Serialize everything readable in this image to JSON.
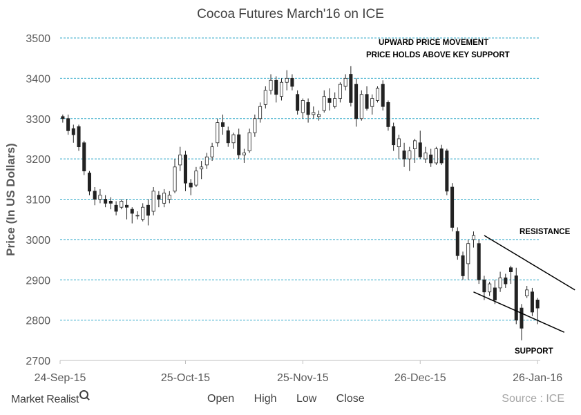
{
  "chart_data": {
    "type": "candlestick",
    "title": "Cocoa Futures  March'16  on ICE",
    "ylabel": "Price (In US Dollars)",
    "ylim": [
      2700,
      3500
    ],
    "yticks": [
      2700,
      2800,
      2900,
      3000,
      3100,
      3200,
      3300,
      3400,
      3500
    ],
    "xtick_labels": [
      "24-Sep-15",
      "25-Oct-15",
      "25-Nov-15",
      "26-Dec-15",
      "26-Jan-16"
    ],
    "grid": "horizontal-dashed",
    "legend_labels": [
      "Open",
      "High",
      "Low",
      "Close"
    ],
    "annotations": [
      "UPWARD PRICE  MOVEMENT",
      "PRICE HOLDS ABOVE KEY SUPPORT",
      "RESISTANCE",
      "SUPPORT"
    ],
    "candles": [
      [
        3305,
        3310,
        3290,
        3300
      ],
      [
        3300,
        3310,
        3260,
        3270
      ],
      [
        3275,
        3285,
        3240,
        3260
      ],
      [
        3280,
        3285,
        3220,
        3230
      ],
      [
        3240,
        3245,
        3160,
        3170
      ],
      [
        3165,
        3170,
        3110,
        3120
      ],
      [
        3120,
        3130,
        3085,
        3100
      ],
      [
        3100,
        3125,
        3090,
        3110
      ],
      [
        3100,
        3110,
        3080,
        3090
      ],
      [
        3095,
        3105,
        3075,
        3090
      ],
      [
        3085,
        3095,
        3060,
        3070
      ],
      [
        3080,
        3100,
        3075,
        3095
      ],
      [
        3085,
        3100,
        3050,
        3080
      ],
      [
        3075,
        3080,
        3040,
        3065
      ],
      [
        3060,
        3070,
        3050,
        3060
      ],
      [
        3050,
        3090,
        3045,
        3080
      ],
      [
        3085,
        3100,
        3035,
        3060
      ],
      [
        3070,
        3130,
        3060,
        3120
      ],
      [
        3110,
        3120,
        3080,
        3100
      ],
      [
        3090,
        3125,
        3080,
        3115
      ],
      [
        3100,
        3120,
        3090,
        3110
      ],
      [
        3120,
        3200,
        3115,
        3180
      ],
      [
        3185,
        3230,
        3170,
        3210
      ],
      [
        3210,
        3220,
        3120,
        3140
      ],
      [
        3140,
        3150,
        3110,
        3130
      ],
      [
        3135,
        3180,
        3130,
        3170
      ],
      [
        3175,
        3195,
        3150,
        3180
      ],
      [
        3185,
        3215,
        3175,
        3205
      ],
      [
        3205,
        3240,
        3195,
        3230
      ],
      [
        3240,
        3300,
        3230,
        3290
      ],
      [
        3290,
        3310,
        3260,
        3280
      ],
      [
        3270,
        3280,
        3230,
        3240
      ],
      [
        3240,
        3265,
        3225,
        3260
      ],
      [
        3260,
        3275,
        3200,
        3210
      ],
      [
        3210,
        3225,
        3190,
        3215
      ],
      [
        3220,
        3275,
        3215,
        3265
      ],
      [
        3265,
        3310,
        3255,
        3300
      ],
      [
        3300,
        3340,
        3290,
        3330
      ],
      [
        3335,
        3380,
        3325,
        3370
      ],
      [
        3370,
        3410,
        3360,
        3395
      ],
      [
        3395,
        3405,
        3340,
        3360
      ],
      [
        3355,
        3400,
        3345,
        3390
      ],
      [
        3390,
        3420,
        3370,
        3400
      ],
      [
        3400,
        3410,
        3370,
        3380
      ],
      [
        3360,
        3370,
        3310,
        3320
      ],
      [
        3315,
        3350,
        3300,
        3345
      ],
      [
        3340,
        3350,
        3290,
        3310
      ],
      [
        3310,
        3330,
        3300,
        3315
      ],
      [
        3305,
        3320,
        3295,
        3310
      ],
      [
        3320,
        3370,
        3315,
        3355
      ],
      [
        3350,
        3375,
        3320,
        3340
      ],
      [
        3330,
        3365,
        3325,
        3350
      ],
      [
        3350,
        3390,
        3340,
        3385
      ],
      [
        3380,
        3410,
        3370,
        3400
      ],
      [
        3410,
        3430,
        3330,
        3340
      ],
      [
        3385,
        3400,
        3280,
        3300
      ],
      [
        3300,
        3370,
        3295,
        3360
      ],
      [
        3360,
        3380,
        3320,
        3325
      ],
      [
        3330,
        3360,
        3310,
        3350
      ],
      [
        3345,
        3380,
        3340,
        3375
      ],
      [
        3385,
        3395,
        3320,
        3330
      ],
      [
        3340,
        3345,
        3270,
        3280
      ],
      [
        3280,
        3290,
        3220,
        3235
      ],
      [
        3230,
        3260,
        3200,
        3250
      ],
      [
        3220,
        3240,
        3180,
        3200
      ],
      [
        3200,
        3230,
        3170,
        3220
      ],
      [
        3225,
        3250,
        3190,
        3245
      ],
      [
        3240,
        3270,
        3200,
        3205
      ],
      [
        3200,
        3230,
        3190,
        3215
      ],
      [
        3210,
        3225,
        3180,
        3190
      ],
      [
        3190,
        3230,
        3185,
        3225
      ],
      [
        3225,
        3235,
        3185,
        3190
      ],
      [
        3220,
        3225,
        3110,
        3120
      ],
      [
        3130,
        3140,
        3020,
        3030
      ],
      [
        3020,
        3030,
        2950,
        2960
      ],
      [
        2960,
        2970,
        2900,
        2910
      ],
      [
        2940,
        3000,
        2900,
        2990
      ],
      [
        3000,
        3020,
        2980,
        3010
      ],
      [
        2990,
        3000,
        2890,
        2900
      ],
      [
        2900,
        2910,
        2850,
        2870
      ],
      [
        2870,
        2895,
        2860,
        2890
      ],
      [
        2880,
        2900,
        2840,
        2850
      ],
      [
        2880,
        2920,
        2870,
        2905
      ],
      [
        2905,
        2915,
        2880,
        2890
      ],
      [
        2930,
        2935,
        2890,
        2920
      ],
      [
        2910,
        2930,
        2790,
        2800
      ],
      [
        2830,
        2840,
        2750,
        2780
      ],
      [
        2860,
        2885,
        2855,
        2875
      ],
      [
        2870,
        2880,
        2810,
        2820
      ],
      [
        2850,
        2855,
        2790,
        2830
      ]
    ],
    "trendlines": [
      {
        "label": "RESISTANCE",
        "from": [
          79,
          3010
        ],
        "to": [
          96,
          2875
        ]
      },
      {
        "label": "SUPPORT",
        "from": [
          77,
          2870
        ],
        "to": [
          94,
          2770
        ]
      }
    ]
  },
  "brand": {
    "name": "Market Realist"
  },
  "source": "Source : ICE"
}
